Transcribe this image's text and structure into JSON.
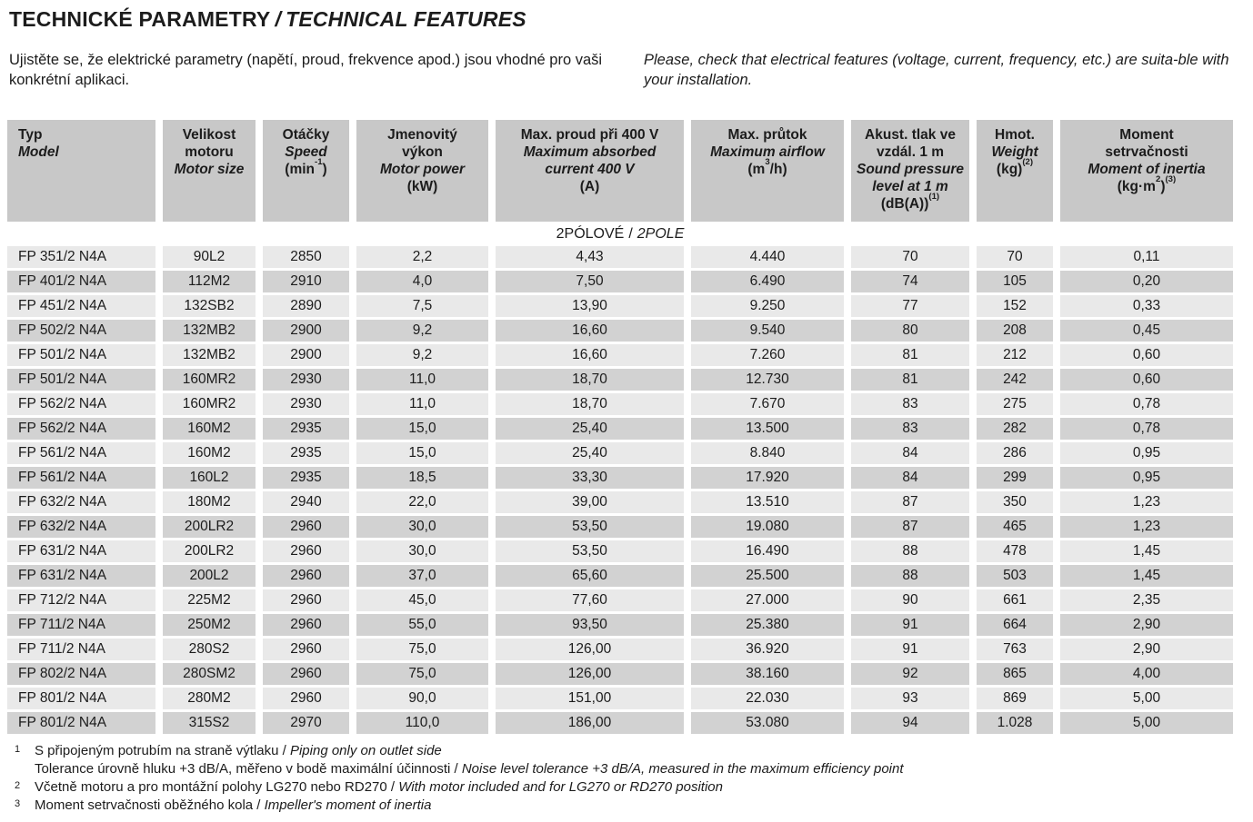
{
  "sep": "/",
  "colors": {
    "header_bg": "#c8c8c8",
    "row_light": "#e9e9e9",
    "row_dark": "#d2d2d2"
  },
  "header": {
    "title_cz": "TECHNICKÉ PARAMETRY",
    "title_en": "TECHNICAL FEATURES",
    "intro_cz": "Ujistěte se, že elektrické parametry (napětí, proud, frekvence apod.) jsou vhodné pro vaši konkrétní aplikaci.",
    "intro_en": "Please, check that electrical features (voltage, current, frequency, etc.) are suita-ble with your installation."
  },
  "table": {
    "columns": [
      {
        "id": "typ",
        "cz": [
          "Typ"
        ],
        "en": [
          "Model"
        ],
        "unit": "",
        "align": "left"
      },
      {
        "id": "motor",
        "cz": [
          "Velikost",
          "motoru"
        ],
        "en": [
          "Motor size"
        ],
        "unit": "",
        "align": "center"
      },
      {
        "id": "otacky",
        "cz": [
          "Otáčky"
        ],
        "en": [
          "Speed"
        ],
        "unit": "(min^-1^)",
        "align": "center"
      },
      {
        "id": "vykon",
        "cz": [
          "Jmenovitý",
          "výkon"
        ],
        "en": [
          "Motor power"
        ],
        "unit": "(kW)",
        "align": "center"
      },
      {
        "id": "proud",
        "cz": [
          "Max. proud při 400 V"
        ],
        "en": [
          "Maximum absorbed",
          "current 400 V"
        ],
        "unit": "(A)",
        "align": "center"
      },
      {
        "id": "prutok",
        "cz": [
          "Max. průtok"
        ],
        "en": [
          "Maximum airflow"
        ],
        "unit": "(m^3^/h)",
        "align": "center"
      },
      {
        "id": "akust",
        "cz": [
          "Akust. tlak ve",
          "vzdál. 1 m"
        ],
        "en": [
          "Sound pressure",
          "level at 1 m"
        ],
        "unit": "(dB(A))^(1)^",
        "align": "center"
      },
      {
        "id": "hmot",
        "cz": [
          "Hmot."
        ],
        "en": [
          "Weight"
        ],
        "unit": "(kg)^(2)^",
        "align": "center"
      },
      {
        "id": "moment",
        "cz": [
          "Moment",
          "setrvačnosti"
        ],
        "en": [
          "Moment of inertia"
        ],
        "unit": "(kg·m^2^)^(3)^",
        "align": "center"
      }
    ],
    "section": {
      "cz": "2PÓLOVÉ",
      "en": "2POLE"
    },
    "rows": [
      [
        "FP 351/2 N4A",
        "90L2",
        "2850",
        "2,2",
        "4,43",
        "4.440",
        "70",
        "70",
        "0,11"
      ],
      [
        "FP 401/2 N4A",
        "112M2",
        "2910",
        "4,0",
        "7,50",
        "6.490",
        "74",
        "105",
        "0,20"
      ],
      [
        "FP 451/2 N4A",
        "132SB2",
        "2890",
        "7,5",
        "13,90",
        "9.250",
        "77",
        "152",
        "0,33"
      ],
      [
        "FP 502/2 N4A",
        "132MB2",
        "2900",
        "9,2",
        "16,60",
        "9.540",
        "80",
        "208",
        "0,45"
      ],
      [
        "FP 501/2 N4A",
        "132MB2",
        "2900",
        "9,2",
        "16,60",
        "7.260",
        "81",
        "212",
        "0,60"
      ],
      [
        "FP 501/2 N4A",
        "160MR2",
        "2930",
        "11,0",
        "18,70",
        "12.730",
        "81",
        "242",
        "0,60"
      ],
      [
        "FP 562/2 N4A",
        "160MR2",
        "2930",
        "11,0",
        "18,70",
        "7.670",
        "83",
        "275",
        "0,78"
      ],
      [
        "FP 562/2 N4A",
        "160M2",
        "2935",
        "15,0",
        "25,40",
        "13.500",
        "83",
        "282",
        "0,78"
      ],
      [
        "FP 561/2 N4A",
        "160M2",
        "2935",
        "15,0",
        "25,40",
        "8.840",
        "84",
        "286",
        "0,95"
      ],
      [
        "FP 561/2 N4A",
        "160L2",
        "2935",
        "18,5",
        "33,30",
        "17.920",
        "84",
        "299",
        "0,95"
      ],
      [
        "FP 632/2 N4A",
        "180M2",
        "2940",
        "22,0",
        "39,00",
        "13.510",
        "87",
        "350",
        "1,23"
      ],
      [
        "FP 632/2 N4A",
        "200LR2",
        "2960",
        "30,0",
        "53,50",
        "19.080",
        "87",
        "465",
        "1,23"
      ],
      [
        "FP 631/2 N4A",
        "200LR2",
        "2960",
        "30,0",
        "53,50",
        "16.490",
        "88",
        "478",
        "1,45"
      ],
      [
        "FP 631/2 N4A",
        "200L2",
        "2960",
        "37,0",
        "65,60",
        "25.500",
        "88",
        "503",
        "1,45"
      ],
      [
        "FP 712/2 N4A",
        "225M2",
        "2960",
        "45,0",
        "77,60",
        "27.000",
        "90",
        "661",
        "2,35"
      ],
      [
        "FP 711/2 N4A",
        "250M2",
        "2960",
        "55,0",
        "93,50",
        "25.380",
        "91",
        "664",
        "2,90"
      ],
      [
        "FP 711/2 N4A",
        "280S2",
        "2960",
        "75,0",
        "126,00",
        "36.920",
        "91",
        "763",
        "2,90"
      ],
      [
        "FP 802/2 N4A",
        "280SM2",
        "2960",
        "75,0",
        "126,00",
        "38.160",
        "92",
        "865",
        "4,00"
      ],
      [
        "FP 801/2 N4A",
        "280M2",
        "2960",
        "90,0",
        "151,00",
        "22.030",
        "93",
        "869",
        "5,00"
      ],
      [
        "FP 801/2 N4A",
        "315S2",
        "2970",
        "110,0",
        "186,00",
        "53.080",
        "94",
        "1.028",
        "5,00"
      ]
    ]
  },
  "footnotes": [
    {
      "sup": "1",
      "cz": "S připojeným potrubím na straně výtlaku",
      "en": "Piping only on outlet side"
    },
    {
      "sup": "",
      "cz": "Tolerance úrovně hluku +3 dB/A, měřeno v bodě maximální účinnosti",
      "en": "Noise level tolerance +3 dB/A, measured in the maximum efficiency point"
    },
    {
      "sup": "2",
      "cz": "Včetně motoru a pro montážní polohy LG270 nebo RD270",
      "en": "With motor included and for LG270 or RD270 position"
    },
    {
      "sup": "3",
      "cz": "Moment setrvačnosti oběžného kola",
      "en": "Impeller's moment of inertia"
    }
  ]
}
